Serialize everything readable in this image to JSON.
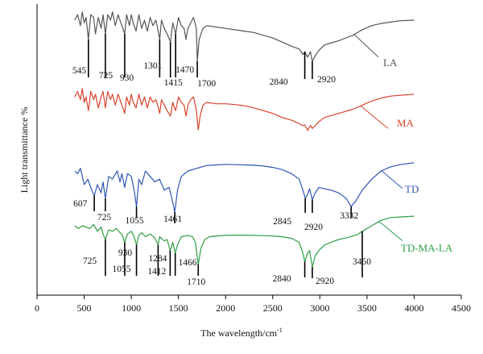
{
  "chart_data": {
    "type": "line",
    "xlabel": "The wavelength/cm",
    "xlabel_superscript": "-1",
    "ylabel": "Light transmittance %",
    "xlim": [
      0,
      4500
    ],
    "xticks": [
      0,
      500,
      1000,
      1500,
      2000,
      2500,
      3000,
      3500,
      4000,
      4500
    ],
    "grid": false,
    "legend": "labels placed next to each curve",
    "series": [
      {
        "name": "LA",
        "color": "#555555",
        "x": [
          400,
          430,
          460,
          480,
          500,
          520,
          545,
          570,
          600,
          620,
          650,
          680,
          700,
          725,
          750,
          780,
          800,
          830,
          860,
          900,
          930,
          950,
          980,
          1000,
          1020,
          1050,
          1080,
          1110,
          1140,
          1170,
          1200,
          1230,
          1260,
          1280,
          1301,
          1320,
          1350,
          1380,
          1415,
          1440,
          1470,
          1500,
          1530,
          1560,
          1580,
          1600,
          1630,
          1660,
          1690,
          1700,
          1720,
          1760,
          1800,
          1900,
          2000,
          2100,
          2200,
          2300,
          2400,
          2500,
          2600,
          2700,
          2780,
          2820,
          2840,
          2870,
          2900,
          2920,
          2950,
          2990,
          3050,
          3200,
          3350,
          3450,
          3550,
          3650,
          3750,
          3850,
          4000
        ],
        "y": [
          95,
          97,
          93,
          98,
          94,
          96,
          88,
          97,
          96,
          90,
          96,
          92,
          97,
          90,
          97,
          95,
          98,
          93,
          97,
          93,
          90,
          97,
          93,
          97,
          94,
          91,
          97,
          92,
          95,
          91,
          96,
          93,
          95,
          92,
          88,
          95,
          92,
          90,
          87,
          94,
          90,
          96,
          93,
          92,
          88,
          92,
          94,
          96,
          92,
          80,
          88,
          92,
          93,
          92.5,
          92,
          91.5,
          91,
          90.5,
          89.5,
          88.5,
          87,
          85.5,
          84.5,
          82.5,
          83.5,
          81.5,
          83.5,
          80,
          82,
          84,
          86,
          87.5,
          89.5,
          91.5,
          93,
          93.8,
          94.3,
          94.8,
          95
        ]
      },
      {
        "name": "MA",
        "color": "#d9432c",
        "x": [
          400,
          430,
          460,
          480,
          500,
          520,
          545,
          570,
          600,
          620,
          650,
          680,
          700,
          725,
          750,
          780,
          800,
          830,
          860,
          900,
          930,
          950,
          980,
          1000,
          1020,
          1050,
          1080,
          1110,
          1140,
          1170,
          1200,
          1230,
          1260,
          1280,
          1301,
          1320,
          1350,
          1380,
          1415,
          1440,
          1470,
          1500,
          1530,
          1560,
          1580,
          1600,
          1630,
          1660,
          1690,
          1710,
          1730,
          1760,
          1800,
          1900,
          2000,
          2100,
          2200,
          2300,
          2400,
          2500,
          2600,
          2700,
          2780,
          2820,
          2840,
          2870,
          2900,
          2920,
          2950,
          2990,
          3050,
          3200,
          3350,
          3450,
          3550,
          3650,
          3750,
          3850,
          4000
        ],
        "y": [
          67,
          69,
          66,
          70,
          65,
          67,
          62,
          69,
          66,
          68,
          63,
          67,
          69,
          63,
          69,
          66,
          68,
          64,
          68,
          64,
          61,
          67,
          64,
          68,
          65,
          63,
          68,
          64,
          67,
          63,
          67,
          65,
          66,
          64,
          61,
          66,
          64,
          62,
          60,
          65,
          62,
          67,
          65,
          64,
          60,
          64,
          66,
          67,
          62,
          55,
          60,
          64,
          65,
          64.5,
          64.5,
          64.2,
          63.8,
          63,
          62,
          61,
          59.5,
          58.5,
          57.2,
          56.5,
          56.8,
          54.8,
          56.6,
          55.5,
          56.5,
          58,
          59.5,
          61,
          62.5,
          64,
          65.5,
          66.6,
          67.3,
          67.6,
          68
        ]
      },
      {
        "name": "TD",
        "color": "#2f55b4",
        "x": [
          400,
          430,
          460,
          500,
          540,
          580,
          607,
          640,
          680,
          700,
          725,
          760,
          800,
          850,
          880,
          900,
          930,
          960,
          1000,
          1030,
          1055,
          1080,
          1110,
          1150,
          1200,
          1250,
          1300,
          1350,
          1400,
          1430,
          1461,
          1490,
          1530,
          1600,
          1700,
          1800,
          1900,
          2000,
          2100,
          2200,
          2300,
          2400,
          2500,
          2600,
          2700,
          2780,
          2820,
          2845,
          2870,
          2890,
          2920,
          2950,
          2990,
          3050,
          3120,
          3200,
          3280,
          3332,
          3380,
          3450,
          3550,
          3650,
          3750,
          3850,
          4000
        ],
        "y": [
          40,
          39,
          41,
          35,
          37,
          33,
          31,
          35,
          32,
          36,
          30,
          38,
          37,
          40,
          36,
          39,
          34,
          39,
          38,
          33,
          27,
          37,
          35,
          40,
          38,
          36,
          37,
          33,
          34,
          30,
          25,
          33,
          38,
          40,
          41,
          42,
          42.2,
          42.4,
          42.3,
          42.2,
          42.1,
          41.8,
          41.3,
          40.5,
          39,
          37,
          33,
          30,
          31.5,
          33.5,
          29.5,
          32,
          34,
          33.5,
          33,
          32,
          30,
          27,
          29,
          33,
          37,
          40,
          41.5,
          42.3,
          43
        ]
      },
      {
        "name": "TD-MA-LA",
        "color": "#2e9e44",
        "x": [
          400,
          440,
          480,
          520,
          560,
          600,
          640,
          680,
          700,
          725,
          760,
          800,
          840,
          880,
          900,
          930,
          960,
          1000,
          1030,
          1055,
          1080,
          1110,
          1150,
          1200,
          1250,
          1284,
          1300,
          1350,
          1380,
          1412,
          1440,
          1466,
          1490,
          1530,
          1600,
          1650,
          1680,
          1710,
          1740,
          1780,
          1830,
          1900,
          2000,
          2100,
          2200,
          2300,
          2400,
          2500,
          2600,
          2700,
          2780,
          2820,
          2840,
          2870,
          2890,
          2920,
          2950,
          2990,
          3050,
          3120,
          3200,
          3300,
          3400,
          3450,
          3550,
          3650,
          3750,
          3850,
          4000
        ],
        "y": [
          20,
          19,
          20,
          19.5,
          19,
          20.5,
          18,
          19.5,
          17,
          15,
          18.5,
          18,
          19,
          17.5,
          17,
          14,
          17,
          18,
          16,
          13,
          16.5,
          17.5,
          16,
          17,
          15.5,
          13,
          16,
          14.5,
          15,
          11,
          14,
          10,
          13,
          16,
          16.5,
          16,
          14,
          6,
          12,
          15,
          16,
          16.3,
          16.5,
          16.6,
          16.6,
          16.5,
          16.4,
          16.3,
          16,
          15.4,
          14,
          10,
          7,
          10,
          11,
          5,
          9,
          11,
          13,
          14,
          15,
          15.8,
          16.8,
          18,
          20,
          22,
          23,
          23.2,
          23.5
        ]
      }
    ],
    "series_labels": [
      "LA",
      "MA",
      "TD",
      "TD-MA-LA"
    ],
    "peak_annotations": [
      {
        "series": "LA",
        "labels": [
          {
            "x": 545,
            "text": "545"
          },
          {
            "x": 725,
            "text": "725"
          },
          {
            "x": 930,
            "text": "930"
          },
          {
            "x": 1301,
            "text": "1301"
          },
          {
            "x": 1415,
            "text": "1415"
          },
          {
            "x": 1470,
            "text": "1470"
          },
          {
            "x": 1700,
            "text": "1700"
          },
          {
            "x": 2840,
            "text": "2840"
          },
          {
            "x": 2920,
            "text": "2920"
          }
        ]
      },
      {
        "series": "TD",
        "labels": [
          {
            "x": 607,
            "text": "607"
          },
          {
            "x": 725,
            "text": "725"
          },
          {
            "x": 1055,
            "text": "1055"
          },
          {
            "x": 1461,
            "text": "1461"
          },
          {
            "x": 2845,
            "text": "2845"
          },
          {
            "x": 2920,
            "text": "2920"
          },
          {
            "x": 3332,
            "text": "3332"
          }
        ]
      },
      {
        "series": "TD-MA-LA",
        "labels": [
          {
            "x": 725,
            "text": "725"
          },
          {
            "x": 930,
            "text": "930"
          },
          {
            "x": 1055,
            "text": "1055"
          },
          {
            "x": 1284,
            "text": "1284"
          },
          {
            "x": 1412,
            "text": "1412"
          },
          {
            "x": 1466,
            "text": "1466"
          },
          {
            "x": 1710,
            "text": "1710"
          },
          {
            "x": 2840,
            "text": "2840"
          },
          {
            "x": 2920,
            "text": "2920"
          },
          {
            "x": 3450,
            "text": "3450"
          }
        ]
      }
    ]
  }
}
